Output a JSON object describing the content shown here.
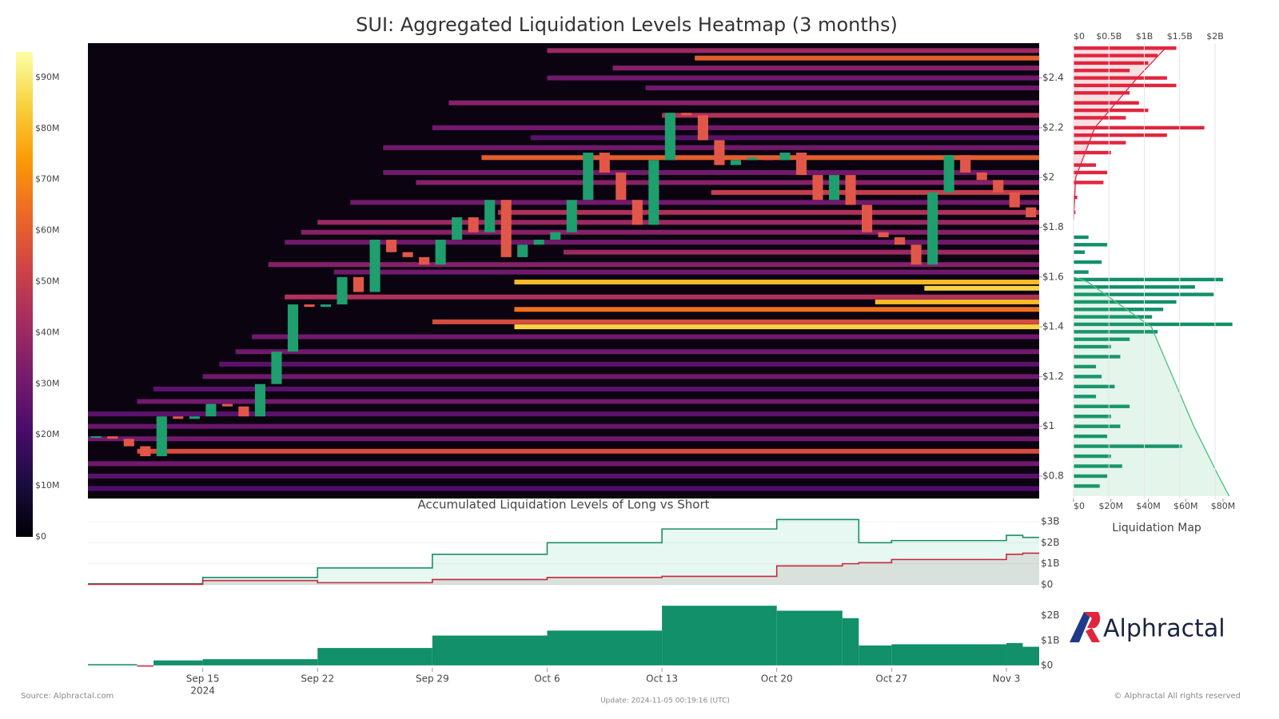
{
  "title": "SUI: Aggregated Liquidation Levels Heatmap (3 months)",
  "footer": {
    "source": "Source: Alphractal.com",
    "update": "Update: 2024-11-05 00:19:16 (UTC)",
    "rights": "© Alphractal All rights reserved",
    "brand": "Alphractal"
  },
  "chart_data": [
    {
      "type": "heatmap",
      "x": [
        "2024-09-08",
        "2024-09-09",
        "2024-09-10",
        "2024-09-11",
        "2024-09-12",
        "2024-09-13",
        "2024-09-14",
        "2024-09-15",
        "2024-09-16",
        "2024-09-17",
        "2024-09-18",
        "2024-09-19",
        "2024-09-20",
        "2024-09-21",
        "2024-09-22",
        "2024-09-23",
        "2024-09-24",
        "2024-09-25",
        "2024-09-26",
        "2024-09-27",
        "2024-09-28",
        "2024-09-29",
        "2024-09-30",
        "2024-10-01",
        "2024-10-02",
        "2024-10-03",
        "2024-10-04",
        "2024-10-05",
        "2024-10-06",
        "2024-10-07",
        "2024-10-08",
        "2024-10-09",
        "2024-10-10",
        "2024-10-11",
        "2024-10-12",
        "2024-10-13",
        "2024-10-14",
        "2024-10-15",
        "2024-10-16",
        "2024-10-17",
        "2024-10-18",
        "2024-10-19",
        "2024-10-20",
        "2024-10-21",
        "2024-10-22",
        "2024-10-23",
        "2024-10-24",
        "2024-10-25",
        "2024-10-26",
        "2024-10-27",
        "2024-10-28",
        "2024-10-29",
        "2024-10-30",
        "2024-10-31",
        "2024-11-01",
        "2024-11-02",
        "2024-11-03",
        "2024-11-04"
      ],
      "values": [
        0.96,
        0.95,
        0.92,
        0.88,
        1.04,
        1.03,
        1.04,
        1.09,
        1.08,
        1.04,
        1.17,
        1.3,
        1.49,
        1.48,
        1.49,
        1.6,
        1.54,
        1.75,
        1.7,
        1.68,
        1.65,
        1.75,
        1.84,
        1.78,
        1.91,
        1.68,
        1.73,
        1.75,
        1.78,
        1.91,
        2.1,
        2.02,
        1.91,
        1.81,
        2.07,
        2.26,
        2.25,
        2.15,
        2.05,
        2.07,
        2.08,
        2.07,
        2.1,
        2.01,
        1.91,
        2.01,
        1.89,
        1.78,
        1.76,
        1.73,
        1.65,
        1.94,
        2.09,
        2.02,
        1.99,
        1.94,
        1.88,
        1.84
      ],
      "up_color": "#1f9e6e",
      "down_color": "#e0574a",
      "levels": [
        2.51,
        2.48,
        2.44,
        2.4,
        2.36,
        2.3,
        2.25,
        2.2,
        2.16,
        2.12,
        2.08,
        2.02,
        1.98,
        1.94,
        1.9,
        1.86,
        1.82,
        1.78,
        1.74,
        1.7,
        1.65,
        1.62,
        1.58,
        1.555,
        1.52,
        1.5,
        1.47,
        1.42,
        1.4,
        1.36,
        1.3,
        1.25,
        1.2,
        1.15,
        1.1,
        1.05,
        1.0,
        0.95,
        0.9,
        0.85,
        0.8,
        0.75
      ],
      "starts": [
        "2024-10-06",
        "2024-10-15",
        "2024-10-10",
        "2024-10-06",
        "2024-10-12",
        "2024-09-30",
        "2024-10-13",
        "2024-09-29",
        "2024-10-05",
        "2024-09-26",
        "2024-10-02",
        "2024-09-26",
        "2024-09-28",
        "2024-10-16",
        "2024-09-24",
        "2024-10-03",
        "2024-09-22",
        "2024-09-21",
        "2024-09-20",
        "2024-10-07",
        "2024-09-19",
        "2024-09-23",
        "2024-10-04",
        "2024-10-29",
        "2024-09-20",
        "2024-10-26",
        "2024-10-04",
        "2024-09-29",
        "2024-10-04",
        "2024-09-18",
        "2024-09-17",
        "2024-09-16",
        "2024-09-15",
        "2024-09-12",
        "2024-09-11",
        "2024-09-08",
        "2024-09-08",
        "2024-09-08",
        "2024-09-11",
        "2024-09-08",
        "2024-09-08",
        "2024-09-08"
      ],
      "intensity": [
        40000000,
        60000000,
        35000000,
        30000000,
        30000000,
        35000000,
        45000000,
        30000000,
        25000000,
        30000000,
        60000000,
        30000000,
        35000000,
        50000000,
        30000000,
        45000000,
        40000000,
        35000000,
        30000000,
        40000000,
        35000000,
        30000000,
        80000000,
        85000000,
        45000000,
        80000000,
        65000000,
        55000000,
        85000000,
        30000000,
        30000000,
        25000000,
        30000000,
        25000000,
        30000000,
        25000000,
        28000000,
        30000000,
        55000000,
        30000000,
        25000000,
        22000000
      ],
      "xlim": [
        "2024-09-08",
        "2024-11-05"
      ],
      "xticks": [
        {
          "value": "2024-09-15",
          "label": "Sep 15"
        },
        {
          "value": "2024-09-22",
          "label": "Sep 22"
        },
        {
          "value": "2024-09-29",
          "label": "Sep 29"
        },
        {
          "value": "2024-10-06",
          "label": "Oct 6"
        },
        {
          "value": "2024-10-13",
          "label": "Oct 13"
        },
        {
          "value": "2024-10-20",
          "label": "Oct 20"
        },
        {
          "value": "2024-10-27",
          "label": "Oct 27"
        },
        {
          "value": "2024-11-03",
          "label": "Nov 3"
        }
      ],
      "year_label": "2024",
      "ylim": [
        0.71,
        2.54
      ],
      "yticks": [
        {
          "value": 0.8,
          "label": "$0.8"
        },
        {
          "value": 1,
          "label": "$1"
        },
        {
          "value": 1.2,
          "label": "$1.2"
        },
        {
          "value": 1.4,
          "label": "$1.4"
        },
        {
          "value": 1.6,
          "label": "$1.6"
        },
        {
          "value": 1.8,
          "label": "$1.8"
        },
        {
          "value": 2,
          "label": "$2"
        },
        {
          "value": 2.2,
          "label": "$2.2"
        },
        {
          "value": 2.4,
          "label": "$2.4"
        }
      ],
      "colorbar": {
        "clim": [
          0,
          95000000
        ],
        "colorscale": [
          "#000004",
          "#1b0c41",
          "#4a0c6b",
          "#781c6d",
          "#a52c60",
          "#cf4446",
          "#ed6925",
          "#fb9b06",
          "#f7d13d",
          "#fcffa4"
        ],
        "ticks": [
          {
            "value": 0,
            "label": "$0"
          },
          {
            "value": 10000000,
            "label": "$10M"
          },
          {
            "value": 20000000,
            "label": "$20M"
          },
          {
            "value": 30000000,
            "label": "$30M"
          },
          {
            "value": 40000000,
            "label": "$40M"
          },
          {
            "value": 50000000,
            "label": "$50M"
          },
          {
            "value": 60000000,
            "label": "$60M"
          },
          {
            "value": 70000000,
            "label": "$70M"
          },
          {
            "value": 80000000,
            "label": "$80M"
          },
          {
            "value": 90000000,
            "label": "$90M"
          }
        ]
      }
    },
    {
      "type": "bar",
      "orientation": "horizontal",
      "xlabel": "Liquidation Map",
      "series": [
        {
          "color": "#e0263f",
          "y": [
            2.52,
            2.49,
            2.46,
            2.43,
            2.4,
            2.37,
            2.34,
            2.3,
            2.27,
            2.24,
            2.2,
            2.17,
            2.14,
            2.1,
            2.05,
            2.02,
            1.98,
            1.92,
            1.86
          ],
          "values": [
            55000000,
            45000000,
            40000000,
            30000000,
            50000000,
            55000000,
            30000000,
            35000000,
            40000000,
            28000000,
            70000000,
            50000000,
            28000000,
            20000000,
            12000000,
            18000000,
            16000000,
            2000000,
            1000000
          ]
        },
        {
          "color": "#11906a",
          "y": [
            1.76,
            1.73,
            1.7,
            1.66,
            1.62,
            1.59,
            1.56,
            1.53,
            1.5,
            1.47,
            1.44,
            1.41,
            1.38,
            1.35,
            1.32,
            1.28,
            1.24,
            1.2,
            1.16,
            1.12,
            1.08,
            1.04,
            1.0,
            0.96,
            0.92,
            0.88,
            0.84,
            0.8,
            0.76
          ],
          "values": [
            8000000,
            18000000,
            6000000,
            15000000,
            8000000,
            80000000,
            65000000,
            75000000,
            55000000,
            48000000,
            42000000,
            85000000,
            45000000,
            30000000,
            20000000,
            25000000,
            12000000,
            15000000,
            22000000,
            12000000,
            30000000,
            20000000,
            25000000,
            18000000,
            58000000,
            20000000,
            26000000,
            18000000,
            14000000
          ]
        },
        {
          "axis": "x2",
          "color": "#e0263f",
          "fill": "rgba(224,38,63,0.15)",
          "y": [
            1.83,
            2.0,
            2.2,
            2.4,
            2.52
          ],
          "values": [
            0,
            30000000,
            300000000,
            900000000,
            1300000000
          ]
        },
        {
          "axis": "x2",
          "color": "#4cbf7f",
          "fill": "rgba(76,191,127,0.15)",
          "y": [
            1.6,
            1.58,
            1.4,
            1.2,
            1.0,
            0.8,
            0.72
          ],
          "values": [
            0,
            200000000,
            1100000000,
            1400000000,
            1700000000,
            2050000000,
            2200000000
          ]
        }
      ],
      "ylim": [
        0.71,
        2.54
      ],
      "xlim": [
        0,
        80000000
      ],
      "xticks": [
        {
          "value": 0,
          "label": "$0"
        },
        {
          "value": 20000000,
          "label": "$20M"
        },
        {
          "value": 40000000,
          "label": "$40M"
        },
        {
          "value": 60000000,
          "label": "$60M"
        },
        {
          "value": 80000000,
          "label": "$80M"
        }
      ],
      "x2lim": [
        0,
        2113000000
      ],
      "x2ticks": [
        {
          "value": 0,
          "label": "$0"
        },
        {
          "value": 500000000,
          "label": "$0.5B"
        },
        {
          "value": 1000000000,
          "label": "$1B"
        },
        {
          "value": 1500000000,
          "label": "$1.5B"
        },
        {
          "value": 2000000000,
          "label": "$2B"
        }
      ]
    },
    {
      "type": "line",
      "title": "Accumulated Liquidation Levels of Long vs Short",
      "x": [
        "2024-09-08",
        "2024-09-15",
        "2024-09-22",
        "2024-09-29",
        "2024-10-06",
        "2024-10-13",
        "2024-10-20",
        "2024-10-24",
        "2024-10-25",
        "2024-10-27",
        "2024-11-03",
        "2024-11-04"
      ],
      "series": [
        {
          "color": "#1a8f6a",
          "fill": "rgba(60,190,140,0.12)",
          "values": [
            50000000,
            350000000,
            800000000,
            1450000000,
            2000000000,
            2650000000,
            3100000000,
            3100000000,
            2000000000,
            2100000000,
            2350000000,
            2250000000
          ]
        },
        {
          "color": "#c8283f",
          "fill": "rgba(150,130,120,0.18)",
          "values": [
            20000000,
            200000000,
            100000000,
            250000000,
            350000000,
            400000000,
            900000000,
            1000000000,
            1050000000,
            1200000000,
            1450000000,
            1500000000
          ]
        }
      ],
      "xlim": [
        "2024-09-08",
        "2024-11-05"
      ],
      "ylim": [
        0,
        3300000000
      ],
      "yticks": [
        {
          "value": 0,
          "label": "$0"
        },
        {
          "value": 1000000000,
          "label": "$1B"
        },
        {
          "value": 2000000000,
          "label": "$2B"
        },
        {
          "value": 3000000000,
          "label": "$3B"
        }
      ]
    },
    {
      "type": "area",
      "x": [
        "2024-09-08",
        "2024-09-11",
        "2024-09-12",
        "2024-09-15",
        "2024-09-22",
        "2024-09-29",
        "2024-10-06",
        "2024-10-13",
        "2024-10-20",
        "2024-10-24",
        "2024-10-25",
        "2024-10-27",
        "2024-11-03",
        "2024-11-04"
      ],
      "values": [
        50000000,
        -50000000,
        200000000,
        250000000,
        700000000,
        1200000000,
        1400000000,
        2400000000,
        2200000000,
        1900000000,
        800000000,
        850000000,
        900000000,
        750000000
      ],
      "up_color": "#11906a",
      "down_color": "#d0263f",
      "xlim": [
        "2024-09-08",
        "2024-11-05"
      ],
      "ylim": [
        -100000000,
        2600000000
      ],
      "yticks": [
        {
          "value": 0,
          "label": "$0"
        },
        {
          "value": 1000000000,
          "label": "$1B"
        },
        {
          "value": 2000000000,
          "label": "$2B"
        }
      ]
    }
  ]
}
